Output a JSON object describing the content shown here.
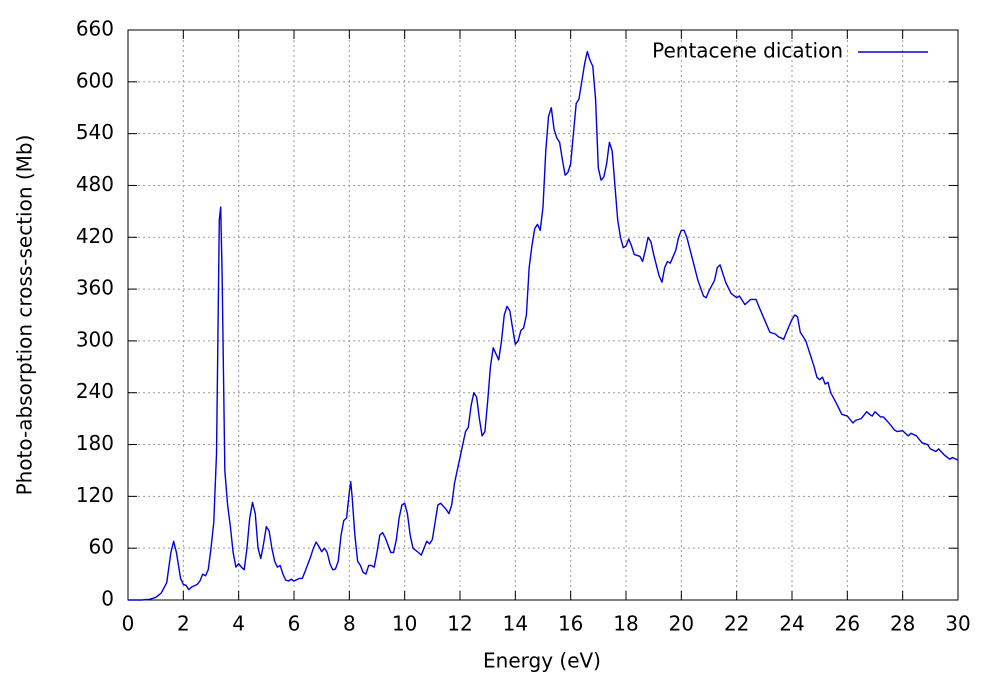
{
  "chart_data": {
    "type": "line",
    "xlabel": "Energy (eV)",
    "ylabel": "Photo-absorption cross-section (Mb)",
    "x": [
      0,
      0.5,
      0.8,
      1.0,
      1.2,
      1.4,
      1.55,
      1.65,
      1.75,
      1.9,
      2.0,
      2.1,
      2.2,
      2.3,
      2.5,
      2.6,
      2.7,
      2.8,
      2.9,
      3.0,
      3.1,
      3.2,
      3.3,
      3.35,
      3.4,
      3.5,
      3.6,
      3.7,
      3.8,
      3.9,
      4.0,
      4.1,
      4.2,
      4.3,
      4.4,
      4.5,
      4.6,
      4.7,
      4.8,
      4.9,
      5.0,
      5.1,
      5.2,
      5.3,
      5.4,
      5.5,
      5.6,
      5.7,
      5.8,
      5.9,
      6.0,
      6.2,
      6.3,
      6.4,
      6.6,
      6.7,
      6.8,
      6.9,
      7.0,
      7.1,
      7.2,
      7.3,
      7.4,
      7.5,
      7.6,
      7.7,
      7.8,
      7.9,
      8.0,
      8.05,
      8.1,
      8.2,
      8.3,
      8.4,
      8.5,
      8.6,
      8.7,
      8.8,
      8.9,
      9.0,
      9.1,
      9.2,
      9.3,
      9.5,
      9.6,
      9.7,
      9.8,
      9.9,
      10.0,
      10.1,
      10.2,
      10.3,
      10.5,
      10.6,
      10.7,
      10.8,
      10.9,
      11.0,
      11.1,
      11.2,
      11.3,
      11.5,
      11.6,
      11.7,
      11.8,
      12.0,
      12.2,
      12.3,
      12.4,
      12.5,
      12.6,
      12.7,
      12.8,
      12.9,
      13.0,
      13.1,
      13.2,
      13.3,
      13.4,
      13.5,
      13.6,
      13.7,
      13.8,
      13.9,
      14.0,
      14.1,
      14.2,
      14.3,
      14.4,
      14.5,
      14.6,
      14.7,
      14.8,
      14.9,
      15.0,
      15.1,
      15.2,
      15.3,
      15.4,
      15.5,
      15.6,
      15.7,
      15.8,
      15.9,
      16.0,
      16.1,
      16.2,
      16.3,
      16.4,
      16.5,
      16.6,
      16.7,
      16.8,
      16.9,
      17.0,
      17.1,
      17.2,
      17.3,
      17.4,
      17.5,
      17.6,
      17.7,
      17.8,
      17.9,
      18.0,
      18.1,
      18.2,
      18.3,
      18.5,
      18.6,
      18.7,
      18.8,
      18.9,
      19.0,
      19.2,
      19.3,
      19.4,
      19.5,
      19.6,
      19.8,
      19.9,
      20.0,
      20.1,
      20.2,
      20.4,
      20.6,
      20.8,
      20.9,
      21.0,
      21.2,
      21.3,
      21.4,
      21.5,
      21.6,
      21.8,
      22.0,
      22.1,
      22.3,
      22.5,
      22.7,
      22.8,
      23.0,
      23.2,
      23.4,
      23.5,
      23.7,
      23.8,
      24.0,
      24.1,
      24.2,
      24.3,
      24.5,
      24.7,
      24.8,
      24.9,
      25.0,
      25.1,
      25.2,
      25.3,
      25.4,
      25.6,
      25.8,
      26.0,
      26.2,
      26.3,
      26.5,
      26.7,
      26.8,
      26.9,
      27.0,
      27.2,
      27.3,
      27.5,
      27.7,
      27.8,
      28.0,
      28.2,
      28.3,
      28.5,
      28.7,
      28.9,
      29.0,
      29.2,
      29.3,
      29.5,
      29.7,
      29.8,
      30.0
    ],
    "series": [
      {
        "name": "Pentacene dication",
        "color": "#0000e0",
        "values": [
          0,
          0,
          1,
          3,
          8,
          20,
          55,
          68,
          55,
          25,
          18,
          17,
          12,
          15,
          18,
          22,
          30,
          28,
          35,
          60,
          90,
          170,
          440,
          455,
          380,
          150,
          110,
          85,
          55,
          38,
          42,
          38,
          35,
          60,
          95,
          113,
          100,
          60,
          48,
          65,
          85,
          80,
          60,
          45,
          38,
          40,
          30,
          23,
          22,
          24,
          22,
          25,
          25,
          33,
          50,
          60,
          67,
          62,
          56,
          60,
          55,
          42,
          35,
          36,
          45,
          75,
          92,
          95,
          125,
          137,
          120,
          75,
          45,
          40,
          32,
          30,
          40,
          40,
          38,
          55,
          75,
          78,
          72,
          55,
          55,
          70,
          95,
          110,
          112,
          100,
          75,
          60,
          55,
          52,
          60,
          68,
          65,
          70,
          90,
          110,
          112,
          105,
          100,
          110,
          135,
          165,
          195,
          200,
          225,
          240,
          235,
          210,
          190,
          195,
          230,
          270,
          292,
          285,
          278,
          300,
          330,
          340,
          335,
          315,
          296,
          300,
          312,
          315,
          330,
          385,
          410,
          430,
          435,
          428,
          455,
          520,
          560,
          570,
          545,
          535,
          530,
          510,
          492,
          495,
          505,
          540,
          575,
          580,
          600,
          620,
          635,
          625,
          618,
          580,
          500,
          486,
          490,
          505,
          530,
          520,
          480,
          440,
          420,
          408,
          410,
          418,
          410,
          400,
          398,
          392,
          405,
          420,
          415,
          400,
          375,
          368,
          385,
          392,
          390,
          405,
          420,
          428,
          428,
          420,
          395,
          370,
          352,
          350,
          358,
          370,
          385,
          388,
          378,
          368,
          355,
          350,
          352,
          342,
          348,
          348,
          340,
          325,
          310,
          308,
          305,
          302,
          310,
          325,
          330,
          328,
          310,
          300,
          280,
          270,
          258,
          255,
          258,
          250,
          252,
          240,
          228,
          215,
          213,
          205,
          208,
          210,
          218,
          215,
          213,
          218,
          212,
          212,
          205,
          197,
          195,
          196,
          190,
          193,
          190,
          182,
          180,
          175,
          172,
          175,
          168,
          163,
          165,
          162
        ]
      }
    ],
    "xlim": [
      0,
      30
    ],
    "xticks": [
      0,
      2,
      4,
      6,
      8,
      10,
      12,
      14,
      16,
      18,
      20,
      22,
      24,
      26,
      28,
      30
    ],
    "ylim": [
      0,
      660
    ],
    "yticks": [
      0,
      60,
      120,
      180,
      240,
      300,
      360,
      420,
      480,
      540,
      600,
      660
    ],
    "grid": true,
    "legend": "upper right"
  }
}
